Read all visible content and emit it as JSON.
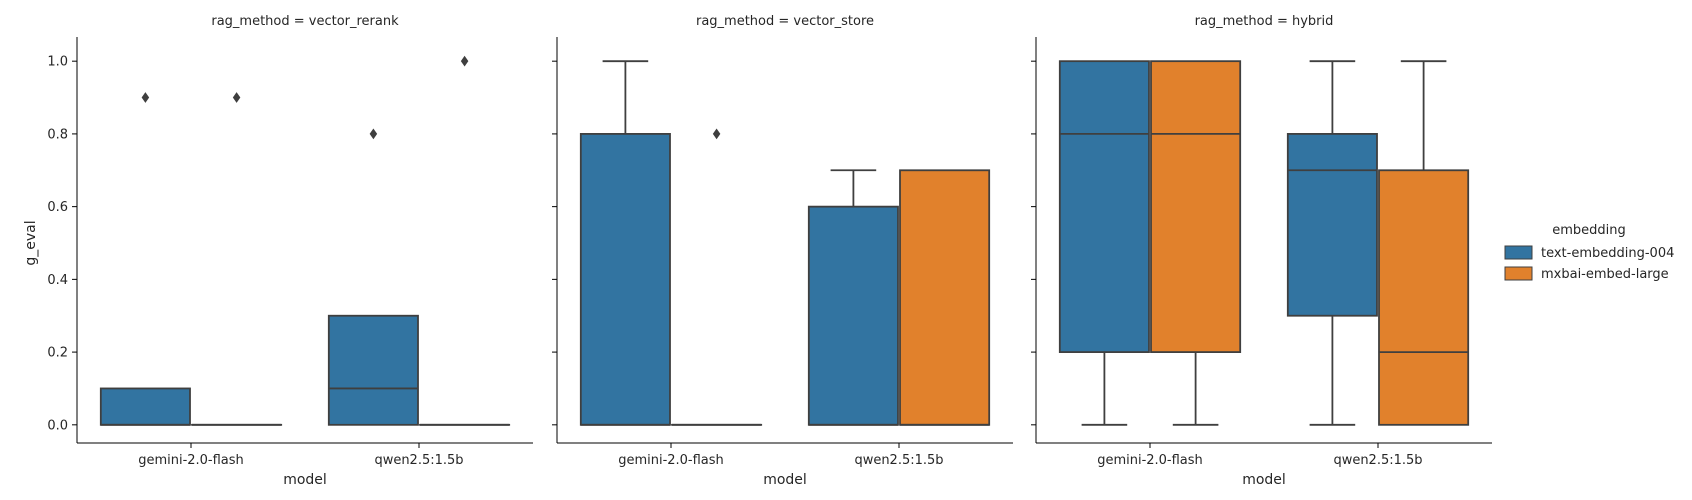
{
  "chart_data": {
    "type": "boxplot",
    "ylabel": "g_eval",
    "xlabel": "model",
    "ylim": [
      -0.05,
      1.05
    ],
    "yticks": [
      0.0,
      0.2,
      0.4,
      0.6,
      0.8,
      1.0
    ],
    "categories": [
      "gemini-2.0-flash",
      "qwen2.5:1.5b"
    ],
    "legend": {
      "title": "embedding",
      "position": "right",
      "entries": [
        {
          "name": "text-embedding-004",
          "color": "#3274a1"
        },
        {
          "name": "mxbai-embed-large",
          "color": "#e1812c"
        }
      ]
    },
    "facets": [
      {
        "title": "rag_method = vector_rerank",
        "boxes": [
          {
            "category": "gemini-2.0-flash",
            "series": "text-embedding-004",
            "whislo": 0.0,
            "q1": 0.0,
            "med": 0.0,
            "q3": 0.1,
            "whishi": 0.1,
            "fliers": [
              0.9
            ]
          },
          {
            "category": "gemini-2.0-flash",
            "series": "mxbai-embed-large",
            "whislo": 0.0,
            "q1": 0.0,
            "med": 0.0,
            "q3": 0.0,
            "whishi": 0.0,
            "fliers": [
              0.9
            ]
          },
          {
            "category": "qwen2.5:1.5b",
            "series": "text-embedding-004",
            "whislo": 0.0,
            "q1": 0.0,
            "med": 0.1,
            "q3": 0.3,
            "whishi": 0.3,
            "fliers": [
              0.8
            ]
          },
          {
            "category": "qwen2.5:1.5b",
            "series": "mxbai-embed-large",
            "whislo": 0.0,
            "q1": 0.0,
            "med": 0.0,
            "q3": 0.0,
            "whishi": 0.0,
            "fliers": [
              1.0
            ]
          }
        ]
      },
      {
        "title": "rag_method = vector_store",
        "boxes": [
          {
            "category": "gemini-2.0-flash",
            "series": "text-embedding-004",
            "whislo": 0.0,
            "q1": 0.0,
            "med": 0.0,
            "q3": 0.8,
            "whishi": 1.0,
            "fliers": []
          },
          {
            "category": "gemini-2.0-flash",
            "series": "mxbai-embed-large",
            "whislo": 0.0,
            "q1": 0.0,
            "med": 0.0,
            "q3": 0.0,
            "whishi": 0.0,
            "fliers": [
              0.8
            ]
          },
          {
            "category": "qwen2.5:1.5b",
            "series": "text-embedding-004",
            "whislo": 0.0,
            "q1": 0.0,
            "med": 0.0,
            "q3": 0.6,
            "whishi": 0.7,
            "fliers": []
          },
          {
            "category": "qwen2.5:1.5b",
            "series": "mxbai-embed-large",
            "whislo": 0.0,
            "q1": 0.0,
            "med": 0.0,
            "q3": 0.7,
            "whishi": 0.7,
            "fliers": []
          }
        ]
      },
      {
        "title": "rag_method = hybrid",
        "boxes": [
          {
            "category": "gemini-2.0-flash",
            "series": "text-embedding-004",
            "whislo": 0.0,
            "q1": 0.2,
            "med": 0.8,
            "q3": 1.0,
            "whishi": 1.0,
            "fliers": []
          },
          {
            "category": "gemini-2.0-flash",
            "series": "mxbai-embed-large",
            "whislo": 0.0,
            "q1": 0.2,
            "med": 0.8,
            "q3": 1.0,
            "whishi": 1.0,
            "fliers": []
          },
          {
            "category": "qwen2.5:1.5b",
            "series": "text-embedding-004",
            "whislo": 0.0,
            "q1": 0.3,
            "med": 0.7,
            "q3": 0.8,
            "whishi": 1.0,
            "fliers": []
          },
          {
            "category": "qwen2.5:1.5b",
            "series": "mxbai-embed-large",
            "whislo": 0.0,
            "q1": 0.0,
            "med": 0.2,
            "q3": 0.7,
            "whishi": 1.0,
            "fliers": []
          }
        ]
      }
    ]
  }
}
